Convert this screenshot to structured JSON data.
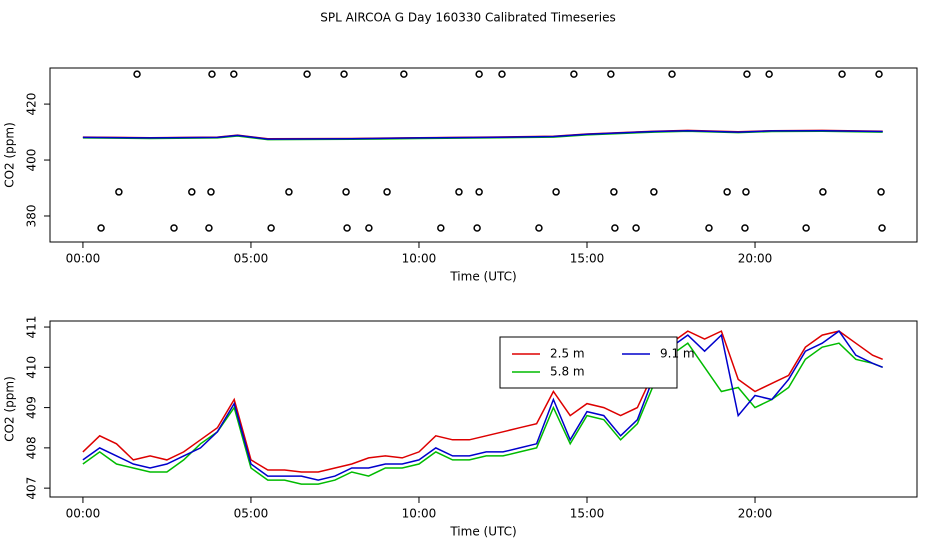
{
  "chart_data": [
    {
      "type": "line",
      "title": "SPL AIRCOA G  Day 160330  Calibrated Timeseries",
      "xlabel": "Time (UTC)",
      "ylabel": "CO2 (ppm)",
      "xlim": [
        -0.98,
        24.82
      ],
      "ylim": [
        370.7,
        432.9
      ],
      "xticks": [
        {
          "value": 0,
          "label": "00:00"
        },
        {
          "value": 5,
          "label": "05:00"
        },
        {
          "value": 10,
          "label": "10:00"
        },
        {
          "value": 15,
          "label": "15:00"
        },
        {
          "value": 20,
          "label": "20:00"
        }
      ],
      "yticks": [
        380,
        400,
        420
      ],
      "x": [
        0,
        2,
        4,
        4.6,
        5.5,
        8,
        10,
        12,
        14,
        15,
        17,
        18,
        19.5,
        20.5,
        22,
        23.8
      ],
      "series": [
        {
          "color": "#dd0000",
          "values": [
            408.2,
            408.0,
            408.2,
            408.9,
            407.6,
            407.7,
            408.0,
            408.2,
            408.5,
            409.3,
            410.3,
            410.6,
            410.1,
            410.5,
            410.6,
            410.3
          ]
        },
        {
          "color": "#00bb00",
          "values": [
            407.9,
            407.7,
            407.9,
            408.6,
            407.3,
            407.4,
            407.7,
            407.9,
            408.2,
            409.0,
            410.0,
            410.3,
            409.8,
            410.2,
            410.3,
            410.0
          ]
        },
        {
          "color": "#0000cc",
          "values": [
            408.1,
            407.9,
            408.1,
            408.8,
            407.5,
            407.6,
            407.9,
            408.1,
            408.4,
            409.2,
            410.2,
            410.5,
            410.0,
            410.4,
            410.5,
            410.2
          ]
        }
      ],
      "markers": [
        {
          "x": [
            1.61,
            3.84,
            4.49,
            6.67,
            7.77,
            9.55,
            11.79,
            12.47,
            14.61,
            15.71,
            17.53,
            19.76,
            20.42,
            22.59,
            23.69
          ],
          "values": [
            430.7,
            430.7,
            430.7,
            430.7,
            430.7,
            430.7,
            430.7,
            430.7,
            430.7,
            430.7,
            430.7,
            430.7,
            430.7,
            430.7,
            430.7
          ]
        },
        {
          "x": [
            1.07,
            3.24,
            3.81,
            6.13,
            7.83,
            9.05,
            11.19,
            11.79,
            14.08,
            15.8,
            16.99,
            19.17,
            19.73,
            22.02,
            23.75
          ],
          "values": [
            388.6,
            388.6,
            388.6,
            388.6,
            388.6,
            388.6,
            388.6,
            388.6,
            388.6,
            388.6,
            388.6,
            388.6,
            388.6,
            388.6,
            388.6
          ]
        },
        {
          "x": [
            0.54,
            2.71,
            3.75,
            5.6,
            7.86,
            8.51,
            10.65,
            11.73,
            13.57,
            15.83,
            16.46,
            18.63,
            19.7,
            21.52,
            23.78
          ],
          "values": [
            375.7,
            375.7,
            375.7,
            375.7,
            375.7,
            375.7,
            375.7,
            375.7,
            375.7,
            375.7,
            375.7,
            375.7,
            375.7,
            375.7,
            375.7
          ]
        }
      ]
    },
    {
      "type": "line",
      "xlabel": "Time (UTC)",
      "ylabel": "CO2 (ppm)",
      "xlim": [
        -0.98,
        24.82
      ],
      "ylim": [
        406.78,
        411.15
      ],
      "xticks": [
        {
          "value": 0,
          "label": "00:00"
        },
        {
          "value": 5,
          "label": "05:00"
        },
        {
          "value": 10,
          "label": "10:00"
        },
        {
          "value": 15,
          "label": "15:00"
        },
        {
          "value": 20,
          "label": "20:00"
        }
      ],
      "yticks": [
        407,
        408,
        409,
        410,
        411
      ],
      "legend": "top",
      "x": [
        0,
        0.5,
        1,
        1.5,
        2,
        2.5,
        3,
        3.5,
        4,
        4.5,
        5,
        5.5,
        6,
        6.5,
        7,
        7.5,
        8,
        8.5,
        9,
        9.5,
        10,
        10.5,
        11,
        11.5,
        12,
        12.5,
        13,
        13.5,
        14,
        14.5,
        15,
        15.5,
        16,
        16.5,
        17,
        17.5,
        18,
        18.5,
        19,
        19.5,
        20,
        20.5,
        21,
        21.5,
        22,
        22.5,
        23,
        23.5,
        23.8
      ],
      "series": [
        {
          "name": "2.5 m",
          "color": "#dd0000",
          "values": [
            407.9,
            408.3,
            408.1,
            407.7,
            407.8,
            407.7,
            407.9,
            408.2,
            408.5,
            409.2,
            407.7,
            407.45,
            407.45,
            407.4,
            407.4,
            407.5,
            407.6,
            407.75,
            407.8,
            407.75,
            407.9,
            408.3,
            408.2,
            408.2,
            408.3,
            408.4,
            408.5,
            408.6,
            409.4,
            408.8,
            409.1,
            409.0,
            408.8,
            409.0,
            409.9,
            410.6,
            410.9,
            410.7,
            410.9,
            409.7,
            409.4,
            409.6,
            409.8,
            410.5,
            410.8,
            410.9,
            410.6,
            410.3,
            410.2
          ]
        },
        {
          "name": "5.8 m",
          "color": "#00bb00",
          "values": [
            407.6,
            407.9,
            407.6,
            407.5,
            407.4,
            407.4,
            407.7,
            408.1,
            408.4,
            409.0,
            407.5,
            407.2,
            407.2,
            407.1,
            407.1,
            407.2,
            407.4,
            407.3,
            407.5,
            407.5,
            407.6,
            407.9,
            407.7,
            407.7,
            407.8,
            407.8,
            407.9,
            408.0,
            409.0,
            408.1,
            408.8,
            408.7,
            408.2,
            408.6,
            409.6,
            410.3,
            410.6,
            410.0,
            409.4,
            409.5,
            409.0,
            409.2,
            409.5,
            410.2,
            410.5,
            410.6,
            410.2,
            410.1,
            410.0
          ]
        },
        {
          "name": "9.1 m",
          "color": "#0000cc",
          "values": [
            407.7,
            408.0,
            407.8,
            407.6,
            407.5,
            407.6,
            407.8,
            408.0,
            408.4,
            409.1,
            407.6,
            407.3,
            407.3,
            407.3,
            407.2,
            407.3,
            407.5,
            407.5,
            407.6,
            407.6,
            407.7,
            408.0,
            407.8,
            407.8,
            407.9,
            407.9,
            408.0,
            408.1,
            409.2,
            408.2,
            408.9,
            408.8,
            408.3,
            408.7,
            409.8,
            410.5,
            410.8,
            410.4,
            410.8,
            408.8,
            409.3,
            409.2,
            409.7,
            410.4,
            410.6,
            410.9,
            410.3,
            410.1,
            410.0
          ]
        }
      ]
    }
  ]
}
